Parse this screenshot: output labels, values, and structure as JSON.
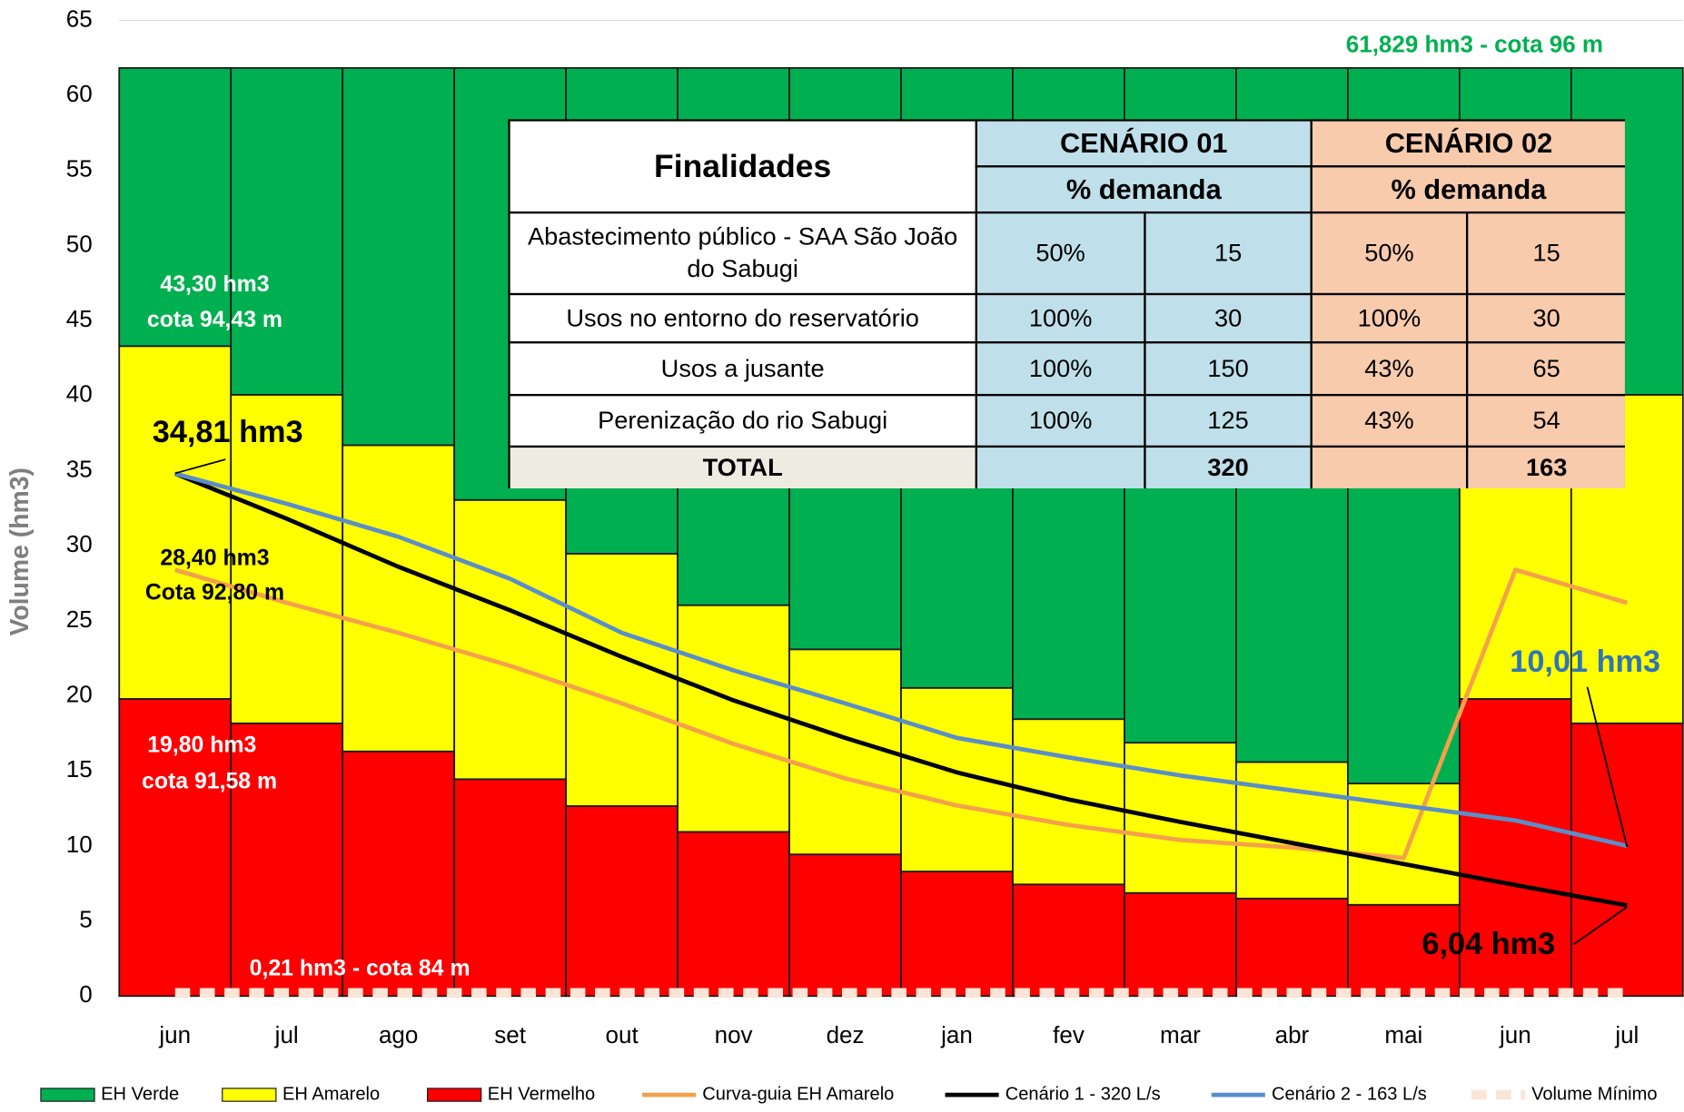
{
  "chart_data": {
    "type": "bar",
    "y_label": "Volume (hm3)",
    "categories": [
      "jun",
      "jul",
      "ago",
      "set",
      "out",
      "nov",
      "dez",
      "jan",
      "fev",
      "mar",
      "abr",
      "mai",
      "jun",
      "jul"
    ],
    "ylim": [
      0,
      65
    ],
    "yticks": [
      0,
      5,
      10,
      15,
      20,
      25,
      30,
      35,
      40,
      45,
      50,
      55,
      60,
      65
    ],
    "grid": true,
    "legend": "bottom",
    "series": [
      {
        "name": "EH Verde",
        "type": "bar",
        "color": "#00b050",
        "values": [
          18.53,
          21.77,
          25.13,
          28.78,
          32.36,
          35.79,
          38.73,
          41.3,
          43.38,
          44.95,
          46.24,
          47.67,
          18.53,
          21.77
        ]
      },
      {
        "name": "EH Amarelo",
        "type": "bar",
        "color": "#ffff00",
        "values": [
          23.5,
          21.89,
          20.4,
          18.6,
          16.81,
          15.1,
          13.66,
          12.23,
          11.01,
          10.01,
          9.09,
          8.08,
          23.5,
          21.89
        ]
      },
      {
        "name": "EH Vermelho",
        "type": "bar",
        "color": "#ff0000",
        "values": [
          19.8,
          18.17,
          16.3,
          14.45,
          12.66,
          10.94,
          9.44,
          8.3,
          7.44,
          6.87,
          6.5,
          6.08,
          19.8,
          18.17
        ]
      },
      {
        "name": "Curva-guia EH Amarelo",
        "type": "line",
        "color": "#f4a04c",
        "values": [
          28.4,
          26.2,
          24.2,
          22.0,
          19.5,
          16.8,
          14.5,
          12.7,
          11.4,
          10.4,
          9.9,
          9.2,
          28.4,
          26.2
        ]
      },
      {
        "name": "Cenário 1 - 320 L/s",
        "type": "line",
        "color": "#000000",
        "values": [
          34.81,
          31.8,
          28.6,
          25.7,
          22.6,
          19.7,
          17.2,
          14.9,
          13.1,
          11.6,
          10.2,
          8.8,
          7.4,
          6.04
        ]
      },
      {
        "name": "Cenário 2 - 163 L/s",
        "type": "line",
        "color": "#5b8ec9",
        "values": [
          34.81,
          32.8,
          30.6,
          27.8,
          24.2,
          21.7,
          19.5,
          17.2,
          15.9,
          14.7,
          13.7,
          12.7,
          11.7,
          10.01
        ]
      },
      {
        "name": "Volume Mínimo",
        "type": "dashed",
        "color": "#fbe5d6",
        "values": [
          0.21,
          0.21,
          0.21,
          0.21,
          0.21,
          0.21,
          0.21,
          0.21,
          0.21,
          0.21,
          0.21,
          0.21,
          0.21,
          0.21
        ]
      }
    ],
    "annotations": [
      "61,829 hm3 - cota 96 m",
      "43,30 hm3",
      "cota 94,43 m",
      "34,81 hm3",
      "28,40 hm3",
      "Cota 92,80 m",
      "19,80 hm3",
      "cota 91,58 m",
      "0,21 hm3 - cota 84 m",
      "10,01 hm3",
      "6,04 hm3"
    ]
  },
  "table": {
    "title": "Finalidades",
    "scenarios": [
      {
        "name": "CENÁRIO 01",
        "unit": "% demanda"
      },
      {
        "name": "CENÁRIO 02",
        "unit": "% demanda"
      }
    ],
    "rows": [
      [
        "Abastecimento público - SAA São João do Sabugi",
        "50%",
        "15",
        "50%",
        "15"
      ],
      [
        "Usos no entorno do reservatório",
        "100%",
        "30",
        "100%",
        "30"
      ],
      [
        "Usos a jusante",
        "100%",
        "150",
        "43%",
        "65"
      ],
      [
        "Perenização do rio Sabugi",
        "100%",
        "125",
        "43%",
        "54"
      ]
    ],
    "total": [
      "TOTAL",
      "320",
      "163"
    ]
  }
}
